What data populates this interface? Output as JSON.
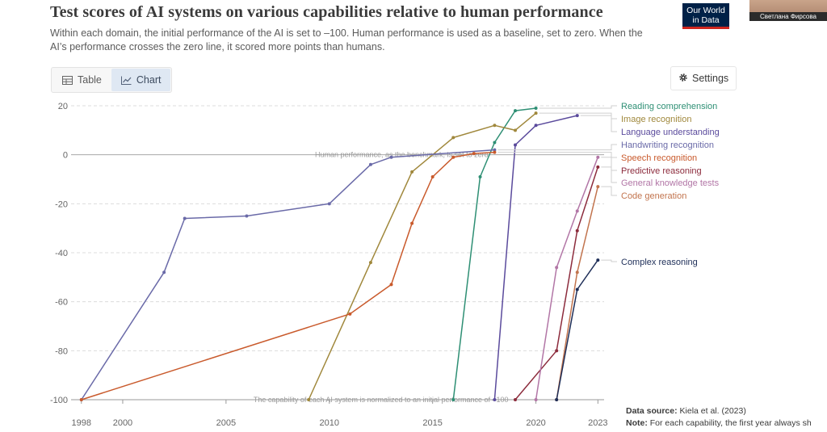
{
  "title": "Test scores of AI systems on various capabilities relative to human performance",
  "subtitle": "Within each domain, the initial performance of the AI is set to –100. Human performance is used as a baseline, set to zero. When the AI’s performance crosses the zero line, it scored more points than humans.",
  "logo": {
    "line1": "Our World",
    "line2": "in Data"
  },
  "webcam_name": "Светлана Фирсова",
  "tabs": [
    {
      "label": "Table",
      "icon": "table-icon",
      "active": false
    },
    {
      "label": "Chart",
      "icon": "line-chart-icon",
      "active": true
    }
  ],
  "settings_label": "Settings",
  "footer": {
    "source_label": "Data source:",
    "source_text": "Kiela et al. (2023)",
    "note_label": "Note:",
    "note_text": "For each capability, the first year always sh"
  },
  "colors": {
    "grid": "#dcdcdc",
    "zero_line": "#a8a8a8",
    "axis_text": "#666666"
  },
  "chart_data": {
    "type": "line",
    "title": "Test scores of AI systems on various capabilities relative to human performance",
    "xlim": [
      1997.5,
      2023.3
    ],
    "ylim": [
      -100,
      20
    ],
    "x_ticks": [
      1998,
      2000,
      2005,
      2010,
      2015,
      2020,
      2023
    ],
    "y_ticks": [
      20,
      0,
      -20,
      -40,
      -60,
      -80,
      -100
    ],
    "grid": true,
    "annotations": [
      {
        "text": "Human performance, as the benchmark, is set to zero",
        "x": 2013.5,
        "y": 0
      },
      {
        "text": "The capability of each AI system is normalized to an initial performance of –100",
        "x": 2012.5,
        "y": -100
      }
    ],
    "legend_position": "right",
    "series": [
      {
        "name": "Reading comprehension",
        "color": "#2e8f74",
        "points": [
          [
            2016,
            -100
          ],
          [
            2017.3,
            -9
          ],
          [
            2018.0,
            5
          ],
          [
            2019.0,
            18
          ],
          [
            2020.0,
            19
          ]
        ]
      },
      {
        "name": "Image recognition",
        "color": "#a0883c",
        "points": [
          [
            2009,
            -100
          ],
          [
            2012,
            -44
          ],
          [
            2014,
            -7
          ],
          [
            2016,
            7
          ],
          [
            2018,
            12
          ],
          [
            2019,
            10
          ],
          [
            2020,
            17
          ]
        ]
      },
      {
        "name": "Language understanding",
        "color": "#5a4a9c",
        "points": [
          [
            2018,
            -100
          ],
          [
            2019,
            4
          ],
          [
            2020,
            12
          ],
          [
            2022,
            16
          ]
        ]
      },
      {
        "name": "Handwriting recognition",
        "color": "#6a6aa8",
        "points": [
          [
            1998,
            -100
          ],
          [
            2002,
            -48
          ],
          [
            2003,
            -26
          ],
          [
            2006,
            -25
          ],
          [
            2010,
            -20
          ],
          [
            2012,
            -4
          ],
          [
            2013,
            -1
          ],
          [
            2018,
            2
          ]
        ]
      },
      {
        "name": "Speech recognition",
        "color": "#c95a2c",
        "points": [
          [
            1998,
            -100
          ],
          [
            2011,
            -65
          ],
          [
            2013,
            -53
          ],
          [
            2014,
            -28
          ],
          [
            2015,
            -9
          ],
          [
            2016,
            -1
          ],
          [
            2017,
            0.5
          ],
          [
            2018,
            1
          ]
        ]
      },
      {
        "name": "Predictive reasoning",
        "color": "#8c2b3c",
        "points": [
          [
            2019,
            -100
          ],
          [
            2021,
            -80
          ],
          [
            2022,
            -31
          ],
          [
            2023,
            -5
          ]
        ]
      },
      {
        "name": "General knowledge tests",
        "color": "#b276a6",
        "points": [
          [
            2020,
            -100
          ],
          [
            2021,
            -46
          ],
          [
            2022,
            -23
          ],
          [
            2023,
            -1
          ]
        ]
      },
      {
        "name": "Code generation",
        "color": "#c2744e",
        "points": [
          [
            2021,
            -100
          ],
          [
            2022,
            -48
          ],
          [
            2023,
            -13
          ]
        ]
      },
      {
        "name": "Complex reasoning",
        "color": "#1e2e58",
        "points": [
          [
            2021,
            -100
          ],
          [
            2022,
            -55
          ],
          [
            2023,
            -43
          ]
        ]
      }
    ]
  }
}
